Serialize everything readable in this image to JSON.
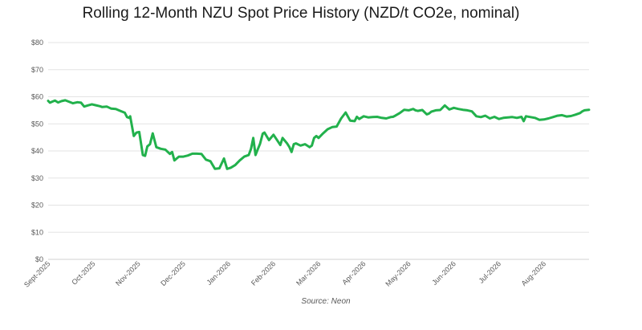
{
  "chart_data": {
    "type": "line",
    "title": "Rolling 12-Month NZU Spot Price History (NZD/t CO2e, nominal)",
    "source": "Source: Neon",
    "ylim": [
      0,
      80
    ],
    "yticks": [
      "$0",
      "$10",
      "$20",
      "$30",
      "$40",
      "$50",
      "$60",
      "$70",
      "$80"
    ],
    "xticks": [
      "Sept-2025",
      "Oct-2025",
      "Nov-2025",
      "Dec-2025",
      "Jan-2026",
      "Feb-2026",
      "Mar-2026",
      "Apr-2026",
      "May-2026",
      "Jun-2026",
      "Jul-2026",
      "Aug-2026"
    ],
    "grid": true,
    "line_color": "#22b14c",
    "series": [
      {
        "x": [
          0,
          0.04,
          0.09,
          0.15,
          0.22,
          0.3,
          0.38,
          0.46,
          0.55,
          0.65,
          0.73,
          0.8,
          0.88,
          0.97,
          1.05,
          1.15,
          1.2,
          1.3,
          1.4,
          1.5,
          1.6,
          1.7,
          1.75,
          1.8,
          1.82,
          1.9,
          1.96,
          2.02,
          2.1,
          2.15,
          2.2,
          2.26,
          2.32,
          2.4,
          2.5,
          2.6,
          2.7,
          2.75,
          2.8,
          2.9,
          3.0,
          3.1,
          3.2,
          3.3,
          3.4,
          3.5,
          3.6,
          3.7,
          3.8,
          3.9,
          3.97,
          4.05,
          4.15,
          4.25,
          4.35,
          4.45,
          4.5,
          4.55,
          4.6,
          4.65,
          4.7,
          4.76,
          4.8,
          4.9,
          5.0,
          5.1,
          5.15,
          5.2,
          5.3,
          5.35,
          5.4,
          5.45,
          5.5,
          5.6,
          5.7,
          5.8,
          5.85,
          5.9,
          5.95,
          6.0,
          6.1,
          6.2,
          6.3,
          6.4,
          6.5,
          6.6,
          6.7,
          6.8,
          6.85,
          6.9,
          7.0,
          7.1,
          7.2,
          7.3,
          7.4,
          7.5,
          7.6,
          7.65,
          7.7,
          7.8,
          7.9,
          8.0,
          8.1,
          8.15,
          8.2,
          8.3,
          8.4,
          8.45,
          8.5,
          8.6,
          8.7,
          8.8,
          8.9,
          9.0,
          9.1,
          9.2,
          9.3,
          9.4,
          9.5,
          9.6,
          9.7,
          9.8,
          9.9,
          10.0,
          10.1,
          10.2,
          10.3,
          10.4,
          10.5,
          10.55,
          10.6,
          10.7,
          10.8,
          10.9,
          11.0,
          11.1,
          11.2,
          11.3,
          11.4,
          11.5,
          11.6,
          11.7,
          11.8,
          11.85,
          11.9,
          12.0
        ],
        "values": [
          58.5,
          57.8,
          58.2,
          58.6,
          57.9,
          58.4,
          58.7,
          58.2,
          57.6,
          58.0,
          57.8,
          56.4,
          56.8,
          57.2,
          56.9,
          56.5,
          56.2,
          56.4,
          55.6,
          55.5,
          54.8,
          54.1,
          52.5,
          52.2,
          52.8,
          45.5,
          46.8,
          47.0,
          38.5,
          38.2,
          41.7,
          42.5,
          46.5,
          41.4,
          40.8,
          40.5,
          38.9,
          39.6,
          36.5,
          37.9,
          37.9,
          38.3,
          39.0,
          39.0,
          38.9,
          36.8,
          36.2,
          33.4,
          33.6,
          37.2,
          33.4,
          33.8,
          34.8,
          36.5,
          37.9,
          38.5,
          40.8,
          44.8,
          38.5,
          40.6,
          42.6,
          46.4,
          46.8,
          44.0,
          46.0,
          43.5,
          42.2,
          44.8,
          42.8,
          41.5,
          39.6,
          42.5,
          42.8,
          42.0,
          42.5,
          41.4,
          42.0,
          44.8,
          45.5,
          44.8,
          46.5,
          48.0,
          48.8,
          49.0,
          52.0,
          54.2,
          51.2,
          51.0,
          52.6,
          51.8,
          52.8,
          52.4,
          52.5,
          52.6,
          52.2,
          52.0,
          52.5,
          52.6,
          53.0,
          54.0,
          55.2,
          55.0,
          55.5,
          55.0,
          54.8,
          55.1,
          53.5,
          53.8,
          54.5,
          55.0,
          55.1,
          56.8,
          55.3,
          55.9,
          55.5,
          55.2,
          55.0,
          54.6,
          52.8,
          52.5,
          53.0,
          52.0,
          52.6,
          51.8,
          52.2,
          52.4,
          52.5,
          52.2,
          52.6,
          51.0,
          52.8,
          52.5,
          52.2,
          51.5,
          51.6,
          52.0,
          52.5,
          53.0,
          53.2,
          52.7,
          52.9,
          53.4,
          54.0,
          54.6,
          55.0,
          55.2
        ]
      }
    ]
  }
}
